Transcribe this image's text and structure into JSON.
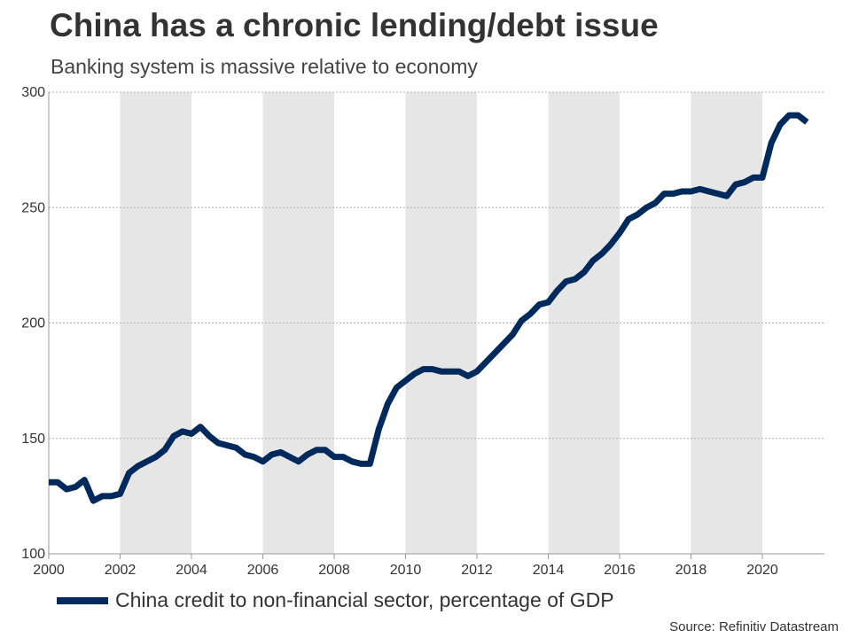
{
  "title": "China has a chronic lending/debt issue",
  "subtitle": "Banking system is massive relative to economy",
  "source": "Source: Refinitiv Datastream",
  "colors": {
    "line": "#002a5c",
    "band": "#e6e6e6",
    "grid": "#b0b0b0",
    "text": "#333333"
  },
  "chart_data": {
    "type": "line",
    "title": "China has a chronic lending/debt issue",
    "subtitle": "Banking system is massive relative to economy",
    "xlabel": "",
    "ylabel": "",
    "xlim": [
      2000,
      2021.5
    ],
    "ylim": [
      100,
      300
    ],
    "x_ticks": [
      2000,
      2002,
      2004,
      2006,
      2008,
      2010,
      2012,
      2014,
      2016,
      2018,
      2020
    ],
    "y_ticks": [
      100,
      150,
      200,
      250,
      300
    ],
    "grid": "horizontal dotted",
    "legend_position": "bottom-left",
    "shaded_bands": [
      [
        2002,
        2004
      ],
      [
        2006,
        2008
      ],
      [
        2010,
        2012
      ],
      [
        2014,
        2016
      ],
      [
        2018,
        2020
      ]
    ],
    "series": [
      {
        "name": "China credit to non-financial sector, percentage of GDP",
        "x": [
          2000,
          2000.25,
          2000.5,
          2000.75,
          2001,
          2001.25,
          2001.5,
          2001.75,
          2002,
          2002.25,
          2002.5,
          2002.75,
          2003,
          2003.25,
          2003.5,
          2003.75,
          2004,
          2004.25,
          2004.5,
          2004.75,
          2005,
          2005.25,
          2005.5,
          2005.75,
          2006,
          2006.25,
          2006.5,
          2006.75,
          2007,
          2007.25,
          2007.5,
          2007.75,
          2008,
          2008.25,
          2008.5,
          2008.75,
          2009,
          2009.25,
          2009.5,
          2009.75,
          2010,
          2010.25,
          2010.5,
          2010.75,
          2011,
          2011.25,
          2011.5,
          2011.75,
          2012,
          2012.25,
          2012.5,
          2012.75,
          2013,
          2013.25,
          2013.5,
          2013.75,
          2014,
          2014.25,
          2014.5,
          2014.75,
          2015,
          2015.25,
          2015.5,
          2015.75,
          2016,
          2016.25,
          2016.5,
          2016.75,
          2017,
          2017.25,
          2017.5,
          2017.75,
          2018,
          2018.25,
          2018.5,
          2018.75,
          2019,
          2019.25,
          2019.5,
          2019.75,
          2020,
          2020.25,
          2020.5,
          2020.75,
          2021,
          2021.25
        ],
        "values": [
          131,
          131,
          128,
          129,
          132,
          123,
          125,
          125,
          126,
          135,
          138,
          140,
          142,
          145,
          151,
          153,
          152,
          155,
          151,
          148,
          147,
          146,
          143,
          142,
          140,
          143,
          144,
          142,
          140,
          143,
          145,
          145,
          142,
          142,
          140,
          139,
          139,
          154,
          165,
          172,
          175,
          178,
          180,
          180,
          179,
          179,
          179,
          177,
          179,
          183,
          187,
          191,
          195,
          201,
          204,
          208,
          209,
          214,
          218,
          219,
          222,
          227,
          230,
          234,
          239,
          245,
          247,
          250,
          252,
          256,
          256,
          257,
          257,
          258,
          257,
          256,
          255,
          260,
          261,
          263,
          263,
          278,
          286,
          290,
          290,
          287
        ]
      }
    ]
  }
}
